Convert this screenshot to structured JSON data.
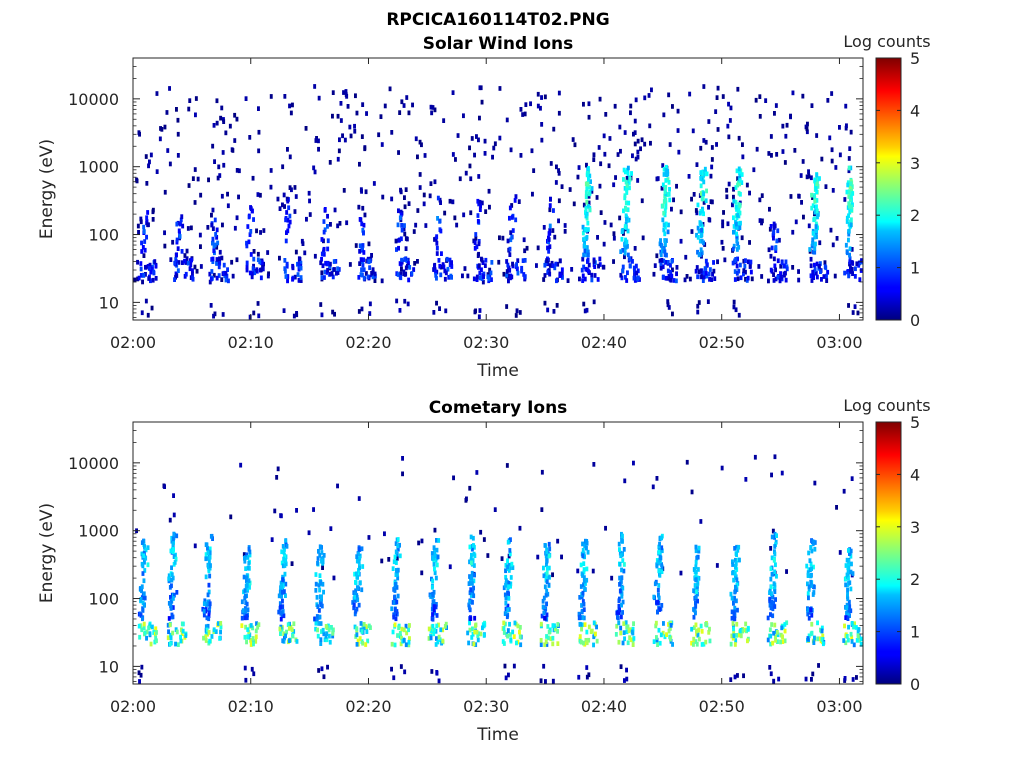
{
  "figure_title": "RPCICA160114T02.PNG",
  "chart_data": [
    {
      "type": "heatmap",
      "title": "Solar Wind Ions",
      "xlabel": "Time",
      "ylabel": "Energy (eV)",
      "x_ticks": [
        "02:00",
        "02:10",
        "02:20",
        "02:30",
        "02:40",
        "02:50",
        "03:00"
      ],
      "x_tick_minutes": [
        0,
        10,
        20,
        30,
        40,
        50,
        60
      ],
      "xlim_minutes": [
        0,
        62
      ],
      "y_scale": "log",
      "ylim": [
        5.5,
        40000
      ],
      "y_ticks": [
        10,
        100,
        1000,
        10000
      ],
      "y_tick_labels": [
        "10",
        "100",
        "1000",
        "10000"
      ],
      "colorbar": {
        "label": "Log counts",
        "range": [
          0,
          5
        ],
        "ticks": [
          "0",
          "1",
          "2",
          "3",
          "4",
          "5"
        ],
        "colormap": "jet"
      },
      "bursts_minutes": [
        0.4,
        3.4,
        6.4,
        9.4,
        12.6,
        15.8,
        19.0,
        22.2,
        25.4,
        28.8,
        31.6,
        34.8,
        38.0,
        41.3,
        44.6,
        47.7,
        50.8,
        54.0,
        57.4,
        60.3
      ],
      "strong_bursts_minutes": [
        38.0,
        41.3,
        44.6,
        47.7,
        50.8,
        57.4,
        60.3
      ],
      "background": "sparse single counts (log counts ~0-0.5) across 20-15000 eV"
    },
    {
      "type": "heatmap",
      "title": "Cometary Ions",
      "xlabel": "Time",
      "ylabel": "Energy (eV)",
      "x_ticks": [
        "02:00",
        "02:10",
        "02:20",
        "02:30",
        "02:40",
        "02:50",
        "03:00"
      ],
      "x_tick_minutes": [
        0,
        10,
        20,
        30,
        40,
        50,
        60
      ],
      "xlim_minutes": [
        0,
        62
      ],
      "y_scale": "log",
      "ylim": [
        5.5,
        40000
      ],
      "y_ticks": [
        10,
        100,
        1000,
        10000
      ],
      "y_tick_labels": [
        "10",
        "100",
        "1000",
        "10000"
      ],
      "colorbar": {
        "label": "Log counts",
        "range": [
          0,
          5
        ],
        "ticks": [
          "0",
          "1",
          "2",
          "3",
          "4",
          "5"
        ],
        "colormap": "jet"
      },
      "bursts_minutes": [
        0.3,
        2.8,
        5.8,
        9.1,
        12.2,
        15.3,
        18.5,
        21.8,
        25.0,
        28.2,
        31.3,
        34.5,
        37.7,
        40.9,
        44.1,
        47.3,
        50.6,
        53.8,
        57.0,
        60.2
      ],
      "peak_log_counts": 3.0,
      "peak_energy_eV": 30,
      "background": "sparse isolated counts up to ~10000 eV"
    }
  ]
}
